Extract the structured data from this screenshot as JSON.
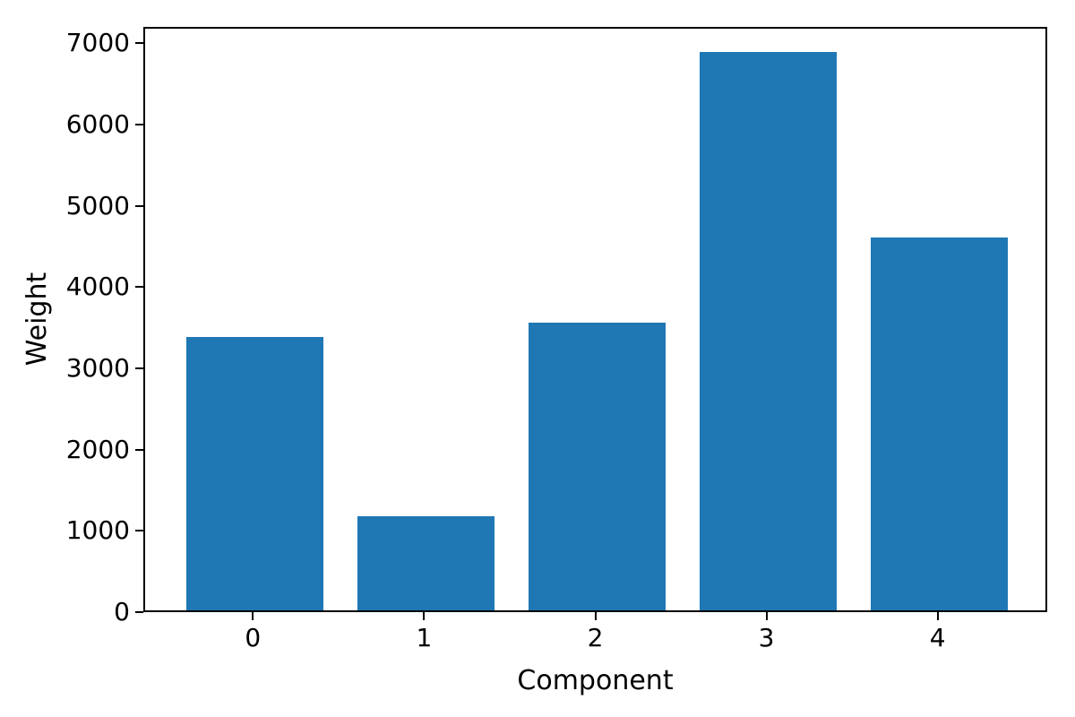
{
  "chart_data": {
    "type": "bar",
    "title": "",
    "xlabel": "Component",
    "ylabel": "Weight",
    "categories": [
      "0",
      "1",
      "2",
      "3",
      "4"
    ],
    "values": [
      3360,
      1155,
      3540,
      6865,
      4585
    ],
    "ylim": [
      0,
      7200
    ],
    "yticks": [
      0,
      1000,
      2000,
      3000,
      4000,
      5000,
      6000,
      7000
    ],
    "ytick_labels": [
      "0",
      "1000",
      "2000",
      "3000",
      "4000",
      "5000",
      "6000",
      "7000"
    ],
    "xlim": [
      -0.64,
      4.64
    ],
    "bar_width": 0.8,
    "bar_color": "#1f77b4",
    "axis_color": "#000000",
    "text_color": "#000000",
    "background_color": "#ffffff",
    "grid": false,
    "legend": "none"
  }
}
